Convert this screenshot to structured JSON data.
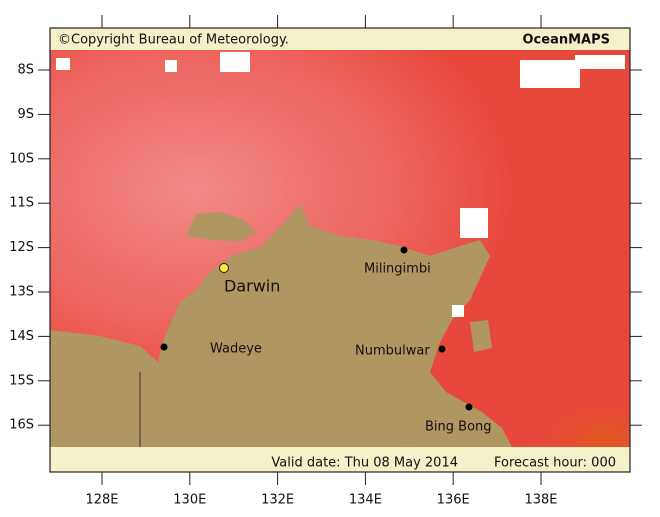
{
  "header": {
    "copyright": "©Copyright Bureau of Meteorology.",
    "brand": "OceanMAPS"
  },
  "latitude_labels": [
    "8S",
    "9S",
    "10S",
    "11S",
    "12S",
    "13S",
    "14S",
    "15S",
    "16S"
  ],
  "longitude_labels": [
    "128E",
    "130E",
    "132E",
    "134E",
    "136E",
    "138E"
  ],
  "places": [
    {
      "name": "Darwin"
    },
    {
      "name": "Milingimbi"
    },
    {
      "name": "Wadeye"
    },
    {
      "name": "Numbulwar"
    },
    {
      "name": "Bing Bong"
    }
  ],
  "footer": {
    "valid_date": "Valid date: Thu 08 May 2014",
    "forecast_hour": "Forecast hour: 000"
  }
}
